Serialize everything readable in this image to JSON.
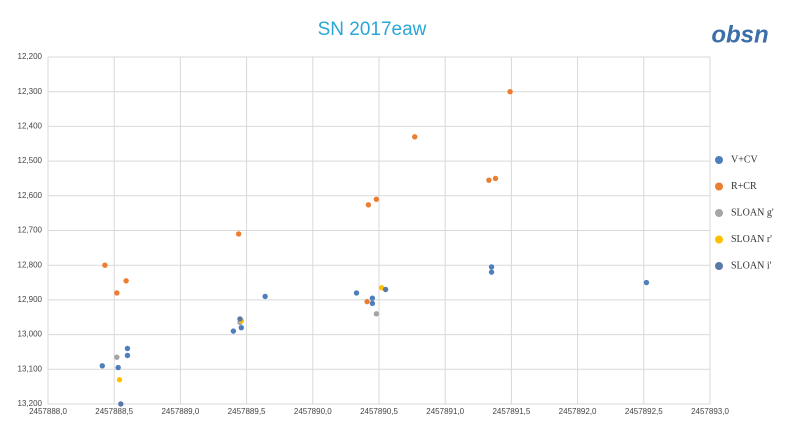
{
  "chart_data": {
    "type": "scatter",
    "title": "SN 2017eaw",
    "logo": "obsn",
    "xlim": [
      2457888.0,
      2457893.0
    ],
    "xticks": [
      {
        "value": 2457888.0,
        "label": "2457888,0"
      },
      {
        "value": 2457888.5,
        "label": "2457888,5"
      },
      {
        "value": 2457889.0,
        "label": "2457889,0"
      },
      {
        "value": 2457889.5,
        "label": "2457889,5"
      },
      {
        "value": 2457890.0,
        "label": "2457890,0"
      },
      {
        "value": 2457890.5,
        "label": "2457890,5"
      },
      {
        "value": 2457891.0,
        "label": "2457891,0"
      },
      {
        "value": 2457891.5,
        "label": "2457891,5"
      },
      {
        "value": 2457892.0,
        "label": "2457892,0"
      },
      {
        "value": 2457892.5,
        "label": "2457892,5"
      },
      {
        "value": 2457893.0,
        "label": "2457893,0"
      }
    ],
    "ylim": [
      12.2,
      13.2
    ],
    "y_reversed": true,
    "yticks": [
      {
        "value": 12.2,
        "label": "12,200"
      },
      {
        "value": 12.3,
        "label": "12,300"
      },
      {
        "value": 12.4,
        "label": "12,400"
      },
      {
        "value": 12.5,
        "label": "12,500"
      },
      {
        "value": 12.6,
        "label": "12,600"
      },
      {
        "value": 12.7,
        "label": "12,700"
      },
      {
        "value": 12.8,
        "label": "12,800"
      },
      {
        "value": 12.9,
        "label": "12,900"
      },
      {
        "value": 13.0,
        "label": "13,000"
      },
      {
        "value": 13.1,
        "label": "13,100"
      },
      {
        "value": 13.2,
        "label": "13,200"
      }
    ],
    "grid": true,
    "legend": "right",
    "series": [
      {
        "name": "V+CV",
        "color": "#4e7fbb",
        "x": [
          2457888.41,
          2457888.53,
          2457888.6,
          2457888.6,
          2457889.4,
          2457889.46,
          2457889.64,
          2457890.33,
          2457890.45,
          2457890.45,
          2457891.35,
          2457891.35,
          2457892.52
        ],
        "values": [
          13.09,
          13.095,
          13.04,
          13.06,
          12.99,
          12.98,
          12.89,
          12.88,
          12.895,
          12.91,
          12.805,
          12.82,
          12.85
        ]
      },
      {
        "name": "R+CR",
        "color": "#ed7d31",
        "x": [
          2457888.43,
          2457888.52,
          2457888.59,
          2457889.44,
          2457890.41,
          2457890.42,
          2457890.48,
          2457890.77,
          2457891.33,
          2457891.38,
          2457891.49
        ],
        "values": [
          12.8,
          12.88,
          12.845,
          12.71,
          12.905,
          12.626,
          12.61,
          12.43,
          12.555,
          12.55,
          12.3
        ]
      },
      {
        "name": "SLOAN g'",
        "color": "#a5a5a5",
        "x": [
          2457888.52,
          2457889.45,
          2457890.48
        ],
        "values": [
          13.065,
          12.965,
          12.94
        ]
      },
      {
        "name": "SLOAN r'",
        "color": "#ffc000",
        "x": [
          2457888.54,
          2457889.46,
          2457890.52
        ],
        "values": [
          13.13,
          12.96,
          12.865
        ]
      },
      {
        "name": "SLOAN i'",
        "color": "#5b79a8",
        "x": [
          2457888.55,
          2457889.45,
          2457890.55
        ],
        "values": [
          13.2,
          12.955,
          12.87
        ]
      }
    ]
  }
}
